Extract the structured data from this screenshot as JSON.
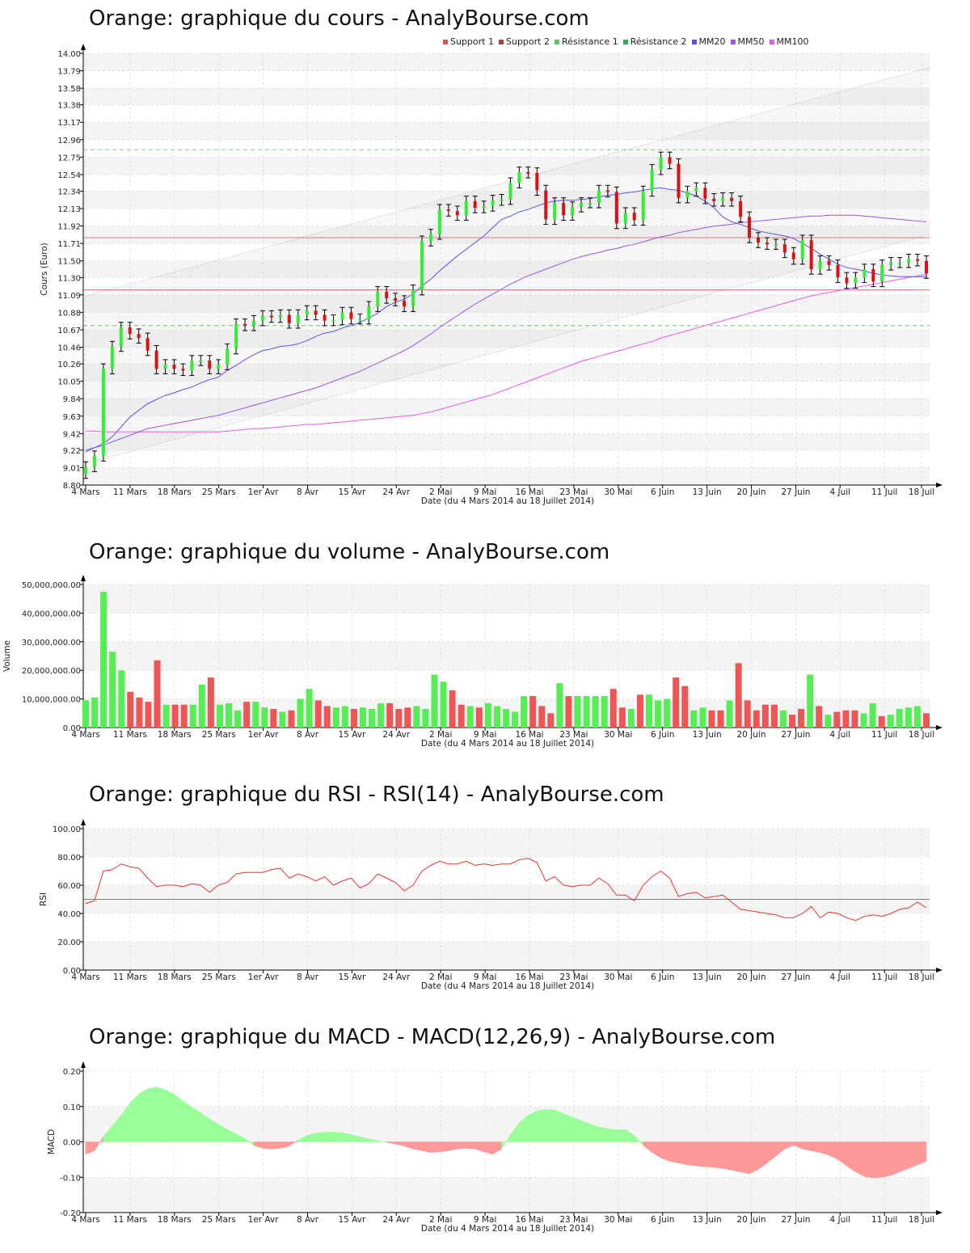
{
  "x_ticks": [
    "4 Mars",
    "11 Mars",
    "18 Mars",
    "25 Mars",
    "1er Avr",
    "8 Avr",
    "15 Avr",
    "24 Avr",
    "2 Mai",
    "9 Mai",
    "16 Mai",
    "23 Mai",
    "30 Mai",
    "6 Juin",
    "13 Juin",
    "20 Juin",
    "27 Juin",
    "4 Juil",
    "11 Juil",
    "18 Juil"
  ],
  "x_axis_label": "Date (du 4 Mars 2014 au 18 Juillet 2014)",
  "colors": {
    "up": "#33ee33",
    "down": "#dd1111",
    "mm20": "#5555ee",
    "mm50": "#9955ee",
    "mm100": "#ee55ee",
    "support": "#dd5555",
    "resistance": "#55bb55"
  },
  "chart_data": [
    {
      "type": "candlestick",
      "title": "Orange: graphique du cours - AnalyBourse.com",
      "ylabel": "Cours (Euro)",
      "xlabel": "Date (du 4 Mars 2014 au 18 Juillet 2014)",
      "ylim": [
        8.8,
        14.0
      ],
      "y_ticks": [
        "8.80",
        "9.01",
        "9.22",
        "9.42",
        "9.63",
        "9.84",
        "10.05",
        "10.26",
        "10.46",
        "10.67",
        "10.88",
        "11.09",
        "11.30",
        "11.50",
        "11.71",
        "11.92",
        "12.13",
        "12.34",
        "12.54",
        "12.75",
        "12.96",
        "13.17",
        "13.38",
        "13.58",
        "13.79",
        "14.00"
      ],
      "legend": [
        "Support 1",
        "Support 2",
        "Résistance 1",
        "Résistance 2",
        "MM20",
        "MM50",
        "MM100"
      ],
      "levels": {
        "support_1": 11.78,
        "support_2": 11.15,
        "resistance_1": 10.72,
        "resistance_2": 12.84
      },
      "closes": [
        9.02,
        9.15,
        10.2,
        10.47,
        10.7,
        10.62,
        10.57,
        10.42,
        10.2,
        10.25,
        10.2,
        10.18,
        10.3,
        10.3,
        10.2,
        10.25,
        10.44,
        10.74,
        10.72,
        10.78,
        10.84,
        10.82,
        10.85,
        10.75,
        10.85,
        10.9,
        10.85,
        10.78,
        10.79,
        10.88,
        10.8,
        10.8,
        10.95,
        11.13,
        11.05,
        11.02,
        10.95,
        11.15,
        11.74,
        11.82,
        12.12,
        12.1,
        12.05,
        12.22,
        12.14,
        12.16,
        12.23,
        12.24,
        12.44,
        12.57,
        12.56,
        12.35,
        12.0,
        12.2,
        12.05,
        12.15,
        12.2,
        12.2,
        12.35,
        12.33,
        11.95,
        12.08,
        11.99,
        12.34,
        12.6,
        12.75,
        12.67,
        12.26,
        12.34,
        12.38,
        12.25,
        12.22,
        12.26,
        12.22,
        12.03,
        11.78,
        11.72,
        11.7,
        11.7,
        11.6,
        11.52,
        11.75,
        11.4,
        11.5,
        11.45,
        11.3,
        11.23,
        11.3,
        11.4,
        11.25,
        11.45,
        11.48,
        11.48,
        11.52,
        11.5,
        11.35
      ],
      "mm20": [
        9.2,
        9.25,
        9.3,
        9.38,
        9.5,
        9.62,
        9.7,
        9.78,
        9.83,
        9.88,
        9.91,
        9.95,
        9.98,
        10.03,
        10.07,
        10.1,
        10.18,
        10.24,
        10.31,
        10.37,
        10.42,
        10.44,
        10.47,
        10.48,
        10.5,
        10.54,
        10.59,
        10.63,
        10.65,
        10.69,
        10.72,
        10.76,
        10.81,
        10.87,
        10.95,
        11.0,
        11.04,
        11.1,
        11.2,
        11.28,
        11.38,
        11.47,
        11.56,
        11.64,
        11.72,
        11.8,
        11.9,
        12.0,
        12.04,
        12.09,
        12.12,
        12.16,
        12.2,
        12.22,
        12.23,
        12.23,
        12.24,
        12.25,
        12.27,
        12.29,
        12.3,
        12.32,
        12.33,
        12.35,
        12.37,
        12.38,
        12.36,
        12.35,
        12.32,
        12.28,
        12.22,
        12.14,
        12.03,
        11.97,
        11.94,
        11.9,
        11.86,
        11.84,
        11.82,
        11.8,
        11.77,
        11.71,
        11.65,
        11.58,
        11.52,
        11.46,
        11.42,
        11.4,
        11.38,
        11.35,
        11.33,
        11.32,
        11.31,
        11.31,
        11.31,
        11.31
      ],
      "mm50": [
        9.22,
        9.25,
        9.28,
        9.32,
        9.36,
        9.4,
        9.44,
        9.48,
        9.5,
        9.52,
        9.54,
        9.56,
        9.58,
        9.6,
        9.62,
        9.64,
        9.67,
        9.7,
        9.73,
        9.76,
        9.79,
        9.82,
        9.85,
        9.88,
        9.91,
        9.94,
        9.97,
        10.01,
        10.05,
        10.09,
        10.13,
        10.17,
        10.22,
        10.27,
        10.32,
        10.37,
        10.42,
        10.48,
        10.55,
        10.62,
        10.7,
        10.77,
        10.84,
        10.91,
        10.98,
        11.04,
        11.1,
        11.16,
        11.22,
        11.27,
        11.32,
        11.36,
        11.4,
        11.44,
        11.48,
        11.52,
        11.55,
        11.58,
        11.6,
        11.63,
        11.65,
        11.68,
        11.7,
        11.73,
        11.76,
        11.79,
        11.81,
        11.84,
        11.86,
        11.88,
        11.9,
        11.92,
        11.93,
        11.94,
        11.96,
        11.97,
        11.98,
        11.99,
        12.0,
        12.01,
        12.02,
        12.03,
        12.04,
        12.04,
        12.05,
        12.05,
        12.05,
        12.05,
        12.04,
        12.03,
        12.02,
        12.01,
        12.0,
        11.99,
        11.98,
        11.97
      ],
      "mm100": [
        9.45,
        9.45,
        9.44,
        9.44,
        9.44,
        9.44,
        9.44,
        9.44,
        9.44,
        9.44,
        9.44,
        9.44,
        9.44,
        9.44,
        9.44,
        9.44,
        9.45,
        9.46,
        9.47,
        9.48,
        9.48,
        9.49,
        9.5,
        9.51,
        9.52,
        9.53,
        9.53,
        9.54,
        9.55,
        9.56,
        9.57,
        9.58,
        9.59,
        9.6,
        9.61,
        9.62,
        9.63,
        9.64,
        9.66,
        9.68,
        9.71,
        9.74,
        9.77,
        9.8,
        9.83,
        9.86,
        9.89,
        9.93,
        9.97,
        10.01,
        10.05,
        10.09,
        10.13,
        10.17,
        10.21,
        10.25,
        10.29,
        10.32,
        10.35,
        10.38,
        10.41,
        10.44,
        10.47,
        10.5,
        10.53,
        10.57,
        10.6,
        10.63,
        10.66,
        10.69,
        10.72,
        10.75,
        10.78,
        10.81,
        10.84,
        10.87,
        10.9,
        10.93,
        10.96,
        10.99,
        11.02,
        11.05,
        11.08,
        11.1,
        11.12,
        11.14,
        11.16,
        11.18,
        11.2,
        11.22,
        11.24,
        11.26,
        11.28,
        11.3,
        11.32,
        11.34
      ]
    },
    {
      "type": "bar",
      "title": "Orange: graphique du volume - AnalyBourse.com",
      "ylabel": "Volume",
      "xlabel": "Date (du 4 Mars 2014 au 18 Juillet 2014)",
      "ylim": [
        0,
        50000000
      ],
      "y_ticks": [
        "0.00",
        "10,000,000.00",
        "20,000,000.00",
        "30,000,000.00",
        "40,000,000.00",
        "50,000,000.00"
      ],
      "values": [
        9.5,
        10.5,
        47.5,
        26.5,
        20,
        12.5,
        10.5,
        9,
        23.5,
        8,
        8,
        8,
        8,
        15,
        17.5,
        8,
        8.5,
        6,
        9,
        9,
        7,
        6.5,
        5.5,
        6,
        10,
        13.5,
        9.5,
        7.5,
        7,
        7.5,
        6.5,
        7,
        6.5,
        8.5,
        8.5,
        6.5,
        7,
        7.5,
        6.5,
        18.5,
        16,
        13,
        8,
        7.5,
        7,
        8.5,
        7.5,
        6.5,
        5.5,
        11,
        11,
        7.5,
        5,
        15.5,
        11,
        11,
        11,
        11,
        11,
        13.5,
        7,
        6.5,
        11.5,
        11.5,
        9.5,
        10,
        17.5,
        14.5,
        6,
        7,
        6,
        6,
        9.5,
        22.5,
        9.5,
        6,
        8,
        8,
        6,
        4.5,
        6.5,
        18.5,
        7.5,
        4.5,
        5.5,
        6,
        6,
        5,
        8.5,
        4,
        4.5,
        6.5,
        7,
        7.5,
        5
      ]
    },
    {
      "type": "line",
      "title": "Orange: graphique du RSI - RSI(14) - AnalyBourse.com",
      "ylabel": "RSI",
      "xlabel": "Date (du 4 Mars 2014 au 18 Juillet 2014)",
      "ylim": [
        0,
        100
      ],
      "reference": 50,
      "y_ticks": [
        "0.00",
        "20.00",
        "40.00",
        "60.00",
        "80.00",
        "100.00"
      ],
      "values": [
        47,
        49,
        70,
        71,
        75,
        73,
        72,
        65,
        59,
        60,
        60,
        59,
        61,
        60,
        55,
        60,
        62,
        68,
        69,
        69,
        69,
        71,
        72,
        65,
        68,
        66,
        63,
        66,
        60,
        63,
        65,
        58,
        61,
        68,
        65,
        62,
        56,
        60,
        70,
        74,
        77,
        75,
        75,
        77,
        74,
        75,
        74,
        75,
        75,
        78,
        79,
        76,
        63,
        66,
        60,
        59,
        60,
        60,
        65,
        61,
        53,
        53,
        49,
        60,
        66,
        70,
        65,
        52,
        54,
        55,
        51,
        52,
        53,
        48,
        43,
        42,
        41,
        40,
        39,
        37,
        37,
        40,
        45,
        37,
        41,
        40,
        37,
        35,
        38,
        39,
        38,
        40,
        43,
        44,
        48,
        44
      ]
    },
    {
      "type": "area",
      "title": "Orange: graphique du MACD - MACD(12,26,9) - AnalyBourse.com",
      "ylabel": "MACD",
      "xlabel": "Date (du 4 Mars 2014 au 18 Juillet 2014)",
      "ylim": [
        -0.2,
        0.2
      ],
      "y_ticks": [
        "-0.20",
        "-0.10",
        "0.00",
        "0.10",
        "0.20"
      ],
      "values": [
        -0.035,
        -0.025,
        0.015,
        0.045,
        0.075,
        0.11,
        0.135,
        0.15,
        0.155,
        0.148,
        0.135,
        0.115,
        0.098,
        0.082,
        0.065,
        0.05,
        0.035,
        0.022,
        0.01,
        -0.01,
        -0.018,
        -0.02,
        -0.018,
        -0.012,
        0.005,
        0.018,
        0.025,
        0.027,
        0.028,
        0.026,
        0.021,
        0.014,
        0.008,
        0.003,
        -0.002,
        -0.006,
        -0.012,
        -0.02,
        -0.025,
        -0.03,
        -0.028,
        -0.025,
        -0.02,
        -0.018,
        -0.02,
        -0.028,
        -0.035,
        -0.02,
        0.02,
        0.055,
        0.075,
        0.088,
        0.092,
        0.09,
        0.08,
        0.07,
        0.06,
        0.05,
        0.042,
        0.037,
        0.034,
        0.035,
        0.018,
        -0.01,
        -0.03,
        -0.045,
        -0.055,
        -0.06,
        -0.065,
        -0.068,
        -0.07,
        -0.072,
        -0.075,
        -0.08,
        -0.085,
        -0.09,
        -0.078,
        -0.06,
        -0.04,
        -0.02,
        -0.01,
        -0.02,
        -0.025,
        -0.03,
        -0.038,
        -0.05,
        -0.068,
        -0.085,
        -0.098,
        -0.102,
        -0.1,
        -0.095,
        -0.085,
        -0.075,
        -0.065,
        -0.055
      ]
    }
  ]
}
